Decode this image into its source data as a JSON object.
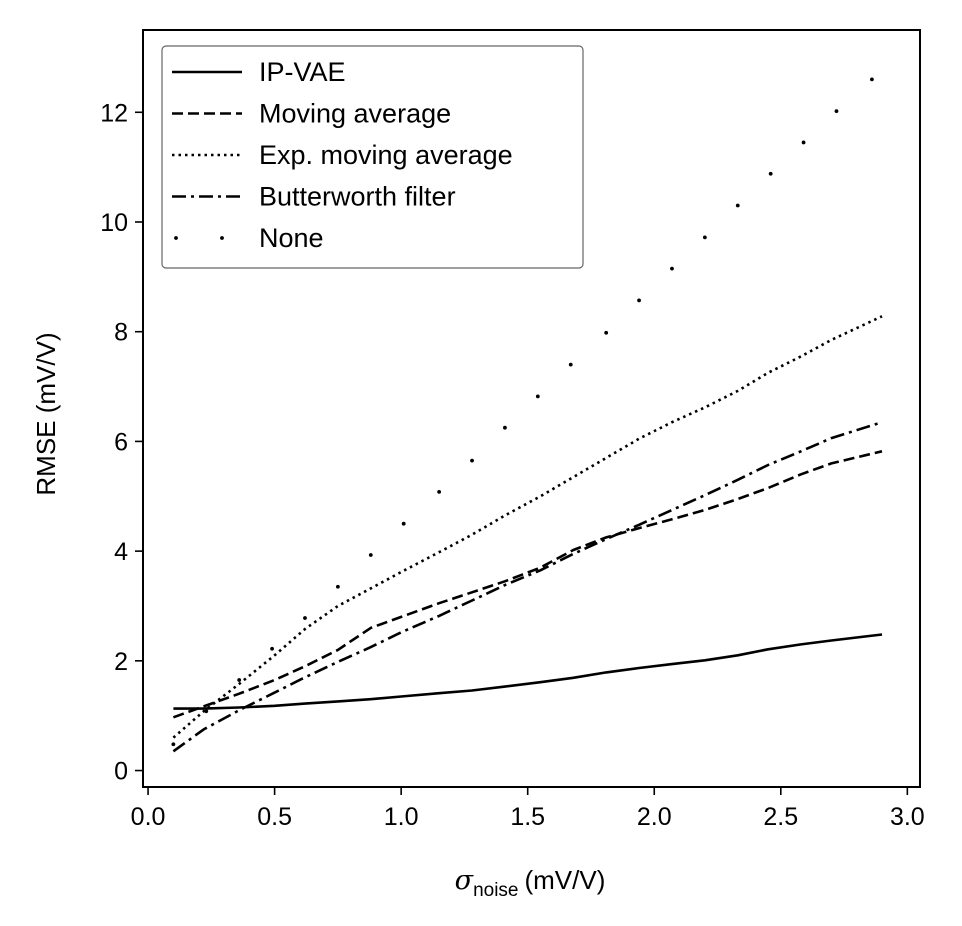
{
  "chart_data": {
    "type": "line",
    "xlabel": {
      "symbol": "σ",
      "subscript": "noise",
      "units": "(mV/V)"
    },
    "ylabel": "RMSE (mV/V)",
    "xlim": [
      -0.02,
      3.05
    ],
    "ylim": [
      -0.3,
      13.5
    ],
    "xticks": [
      0.0,
      0.5,
      1.0,
      1.5,
      2.0,
      2.5,
      3.0
    ],
    "xtick_labels": [
      "0.0",
      "0.5",
      "1.0",
      "1.5",
      "2.0",
      "2.5",
      "3.0"
    ],
    "yticks": [
      0,
      2,
      4,
      6,
      8,
      10,
      12
    ],
    "ytick_labels": [
      "0",
      "2",
      "4",
      "6",
      "8",
      "10",
      "12"
    ],
    "legend_position": "top-left",
    "series": [
      {
        "name": "IP-VAE",
        "style": "solid",
        "x": [
          0.1,
          0.22,
          0.36,
          0.5,
          0.62,
          0.75,
          0.88,
          1.0,
          1.15,
          1.28,
          1.41,
          1.55,
          1.68,
          1.81,
          1.94,
          2.07,
          2.2,
          2.33,
          2.45,
          2.58,
          2.7,
          2.9
        ],
        "y": [
          1.13,
          1.13,
          1.15,
          1.18,
          1.22,
          1.26,
          1.3,
          1.35,
          1.41,
          1.46,
          1.53,
          1.61,
          1.69,
          1.79,
          1.87,
          1.94,
          2.01,
          2.1,
          2.21,
          2.3,
          2.37,
          2.48
        ]
      },
      {
        "name": "Moving average",
        "style": "dashed",
        "x": [
          0.1,
          0.22,
          0.36,
          0.5,
          0.62,
          0.75,
          0.88,
          1.0,
          1.15,
          1.28,
          1.41,
          1.55,
          1.68,
          1.81,
          1.94,
          2.07,
          2.2,
          2.33,
          2.45,
          2.58,
          2.7,
          2.9
        ],
        "y": [
          0.97,
          1.17,
          1.4,
          1.65,
          1.9,
          2.2,
          2.6,
          2.8,
          3.05,
          3.25,
          3.45,
          3.7,
          4.02,
          4.25,
          4.42,
          4.58,
          4.75,
          4.95,
          5.15,
          5.4,
          5.6,
          5.82
        ]
      },
      {
        "name": "Exp. moving average",
        "style": "dotted",
        "x": [
          0.1,
          0.22,
          0.36,
          0.5,
          0.62,
          0.75,
          0.88,
          1.0,
          1.15,
          1.28,
          1.41,
          1.55,
          1.68,
          1.81,
          1.94,
          2.07,
          2.2,
          2.33,
          2.45,
          2.58,
          2.7,
          2.9
        ],
        "y": [
          0.6,
          1.08,
          1.58,
          2.1,
          2.58,
          3.0,
          3.32,
          3.62,
          3.98,
          4.3,
          4.65,
          5.0,
          5.35,
          5.7,
          6.05,
          6.35,
          6.62,
          6.92,
          7.25,
          7.55,
          7.85,
          8.28
        ]
      },
      {
        "name": "Butterworth filter",
        "style": "dashdot",
        "x": [
          0.1,
          0.22,
          0.36,
          0.5,
          0.62,
          0.75,
          0.88,
          1.0,
          1.15,
          1.28,
          1.41,
          1.55,
          1.68,
          1.81,
          1.94,
          2.07,
          2.2,
          2.33,
          2.45,
          2.58,
          2.7,
          2.9
        ],
        "y": [
          0.35,
          0.75,
          1.1,
          1.42,
          1.7,
          1.98,
          2.25,
          2.52,
          2.82,
          3.1,
          3.38,
          3.65,
          3.95,
          4.22,
          4.48,
          4.75,
          5.02,
          5.3,
          5.57,
          5.82,
          6.06,
          6.35
        ]
      },
      {
        "name": "None",
        "style": "sparse-dots",
        "x": [
          0.1,
          0.23,
          0.36,
          0.49,
          0.62,
          0.75,
          0.88,
          1.01,
          1.15,
          1.28,
          1.41,
          1.54,
          1.67,
          1.81,
          1.94,
          2.07,
          2.2,
          2.33,
          2.46,
          2.59,
          2.72,
          2.86
        ],
        "y": [
          0.48,
          1.08,
          1.65,
          2.22,
          2.78,
          3.35,
          3.93,
          4.5,
          5.08,
          5.65,
          6.25,
          6.82,
          7.4,
          7.98,
          8.57,
          9.15,
          9.72,
          10.3,
          10.88,
          11.45,
          12.02,
          12.6
        ]
      }
    ]
  }
}
